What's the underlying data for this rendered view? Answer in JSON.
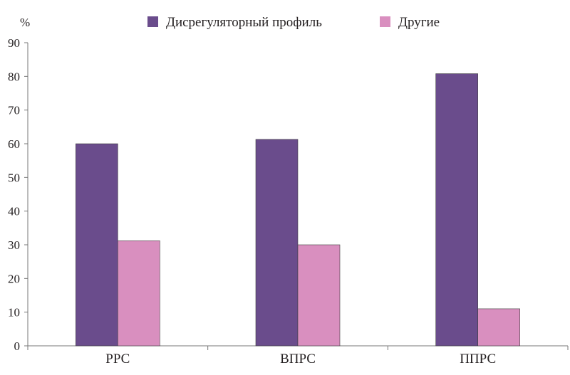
{
  "chart_data": {
    "type": "bar",
    "unit_label": "%",
    "categories": [
      "РРС",
      "ВПРС",
      "ППРС"
    ],
    "series": [
      {
        "name": "Дисрегуляторный профиль",
        "color": "#6a4c8c",
        "values": [
          60,
          61.3,
          80.8
        ]
      },
      {
        "name": "Другие",
        "color": "#d98fbf",
        "values": [
          31.2,
          30,
          11
        ]
      }
    ],
    "yticks": [
      "0",
      "10",
      "20",
      "30",
      "40",
      "50",
      "60",
      "70",
      "80",
      "90"
    ],
    "ylim": [
      0,
      90
    ],
    "grid": false,
    "legend_position": "top"
  }
}
